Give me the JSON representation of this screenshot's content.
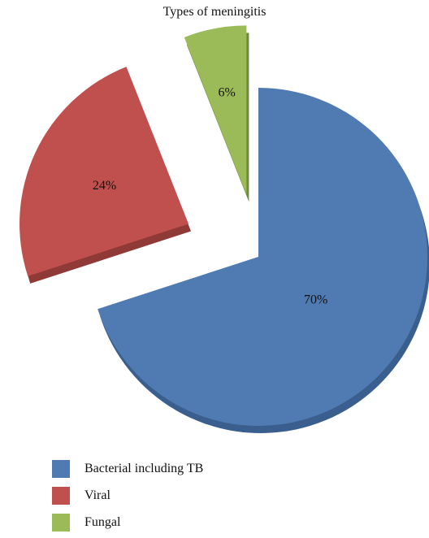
{
  "chart_data": {
    "type": "pie",
    "title": "Types of meningitis",
    "slices": [
      {
        "name": "Bacterial including TB",
        "value": 70,
        "label": "70%",
        "color": "#4f7bb2"
      },
      {
        "name": "Viral",
        "value": 24,
        "label": "24%",
        "color": "#c0504d"
      },
      {
        "name": "Fungal",
        "value": 6,
        "label": "6%",
        "color": "#9bbb59"
      }
    ],
    "legend_position": "bottom-left",
    "exploded": true,
    "three_d": true
  }
}
